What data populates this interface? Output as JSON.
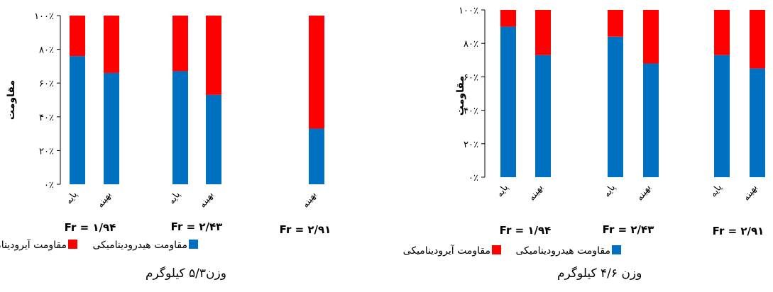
{
  "chart_data": [
    {
      "type": "bar",
      "stacked": true,
      "percent": true,
      "ylabel": "مقاومت",
      "ylim": [
        0,
        100
      ],
      "yticks": [
        "۰٪",
        "۲۰٪",
        "۴۰٪",
        "۶۰٪",
        "۸۰٪",
        "۱۰۰٪"
      ],
      "groups": [
        {
          "label": "Fr = ۱/۹۴",
          "bars": [
            {
              "category": "پایه",
              "hydro": 76,
              "aero": 24
            },
            {
              "category": "بهینه",
              "hydro": 66,
              "aero": 34
            }
          ]
        },
        {
          "label": "Fr = ۲/۴۳",
          "bars": [
            {
              "category": "پایه",
              "hydro": 67,
              "aero": 33
            },
            {
              "category": "بهینه",
              "hydro": 53,
              "aero": 47
            }
          ]
        },
        {
          "label": "Fr = ۲/۹۱",
          "bars": [
            {
              "category": "بهینه",
              "hydro": 33,
              "aero": 67
            }
          ]
        }
      ],
      "legend": {
        "aero": "مقاومت آیرودینامیکی",
        "hydro": "مقاومت هیدرودینامیکی"
      },
      "colors": {
        "aero": "#ff0000",
        "hydro": "#0070c0"
      },
      "caption": "وزن۵/۳ کیلوگرم"
    },
    {
      "type": "bar",
      "stacked": true,
      "percent": true,
      "ylabel": "مقاومت",
      "ylim": [
        0,
        100
      ],
      "yticks": [
        "۰٪",
        "۲۰٪",
        "۴۰٪",
        "۶۰٪",
        "۸۰٪",
        "۱۰۰٪"
      ],
      "groups": [
        {
          "label": "Fr = ۱/۹۴",
          "bars": [
            {
              "category": "پایه",
              "hydro": 90,
              "aero": 10
            },
            {
              "category": "بهینه",
              "hydro": 73,
              "aero": 27
            }
          ]
        },
        {
          "label": "Fr = ۲/۴۳",
          "bars": [
            {
              "category": "پایه",
              "hydro": 84,
              "aero": 16
            },
            {
              "category": "بهینه",
              "hydro": 68,
              "aero": 32
            }
          ]
        },
        {
          "label": "Fr = ۲/۹۱",
          "bars": [
            {
              "category": "پایه",
              "hydro": 73,
              "aero": 27
            },
            {
              "category": "بهینه",
              "hydro": 65,
              "aero": 35
            }
          ]
        }
      ],
      "legend": {
        "aero": "مقاومت آیرودینامیکی",
        "hydro": "مقاومت هیدرودینامیکی"
      },
      "colors": {
        "aero": "#ff0000",
        "hydro": "#0070c0"
      },
      "caption": "وزن ۴/۶ کیلوگرم"
    }
  ]
}
